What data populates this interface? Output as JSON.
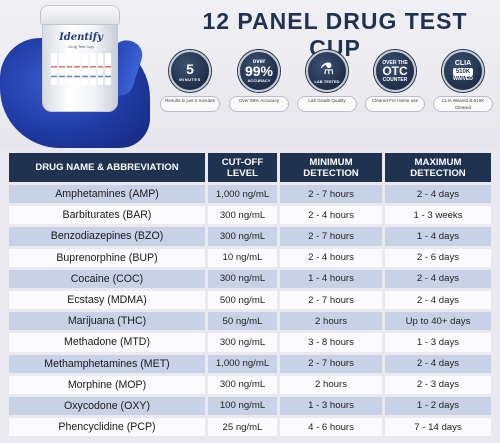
{
  "title": "12 PANEL DRUG TEST CUP",
  "product": {
    "brand": "Identify",
    "subtitle": "Drug Test Cup"
  },
  "badges": [
    {
      "icon": "timer-icon",
      "number": "5",
      "unit": "MINUTES",
      "caption": "Results in just 5 minutes"
    },
    {
      "icon": "accuracy-icon",
      "over": "over",
      "number": "99%",
      "sub": "ACCURACY",
      "caption": "Over 99% Accuracy"
    },
    {
      "icon": "flask-icon",
      "sub": "LAB TESTED",
      "caption": "Lab Grade Quality"
    },
    {
      "icon": "otc-icon",
      "over": "OVER THE",
      "number": "OTC",
      "sub": "COUNTER",
      "caption": "Cleared For Home use"
    },
    {
      "icon": "clia-icon",
      "over": "CLIA",
      "number": "510K",
      "sub": "WAIVED",
      "caption": "CLIA Waived & 510K Cleared"
    }
  ],
  "table": {
    "headers": [
      "DRUG NAME & ABBREVIATION",
      "CUT-OFF LEVEL",
      "MINIMUM DETECTION",
      "MAXIMUM DETECTION"
    ],
    "rows": [
      [
        "Amphetamines (AMP)",
        "1,000 ng/mL",
        "2 - 7 hours",
        "2 - 4 days"
      ],
      [
        "Barbiturates (BAR)",
        "300 ng/mL",
        "2 - 4 hours",
        "1 - 3 weeks"
      ],
      [
        "Benzodiazepines (BZO)",
        "300 ng/mL",
        "2 - 7 hours",
        "1 - 4 days"
      ],
      [
        "Buprenorphine (BUP)",
        "10 ng/mL",
        "2 - 4 hours",
        "2 - 6 days"
      ],
      [
        "Cocaine (COC)",
        "300 ng/mL",
        "1 - 4 hours",
        "2 - 4 days"
      ],
      [
        "Ecstasy (MDMA)",
        "500 ng/mL",
        "2 - 7 hours",
        "2 - 4 days"
      ],
      [
        "Marijuana (THC)",
        "50 ng/mL",
        "2 hours",
        "Up to 40+ days"
      ],
      [
        "Methadone (MTD)",
        "300 ng/mL",
        "3 - 8 hours",
        "1 - 3 days"
      ],
      [
        "Methamphetamines (MET)",
        "1,000 ng/mL",
        "2 - 7 hours",
        "2 - 4 days"
      ],
      [
        "Morphine (MOP)",
        "300 ng/mL",
        "2 hours",
        "2 - 3 days"
      ],
      [
        "Oxycodone (OXY)",
        "100 ng/mL",
        "1 - 3 hours",
        "1 - 2 days"
      ],
      [
        "Phencyclidine (PCP)",
        "25 ng/mL",
        "4 - 6 hours",
        "7 - 14 days"
      ]
    ]
  }
}
